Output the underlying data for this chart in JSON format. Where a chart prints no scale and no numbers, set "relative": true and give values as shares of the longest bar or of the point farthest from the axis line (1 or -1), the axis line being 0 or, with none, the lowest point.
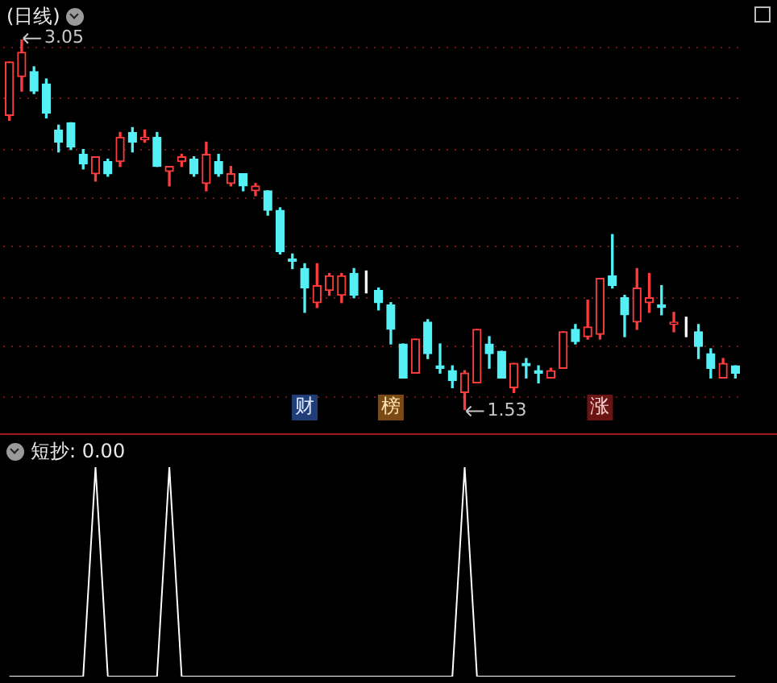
{
  "chart_data": [
    {
      "type": "candlestick",
      "title": "(日线)",
      "categories": [
        null,
        null,
        null,
        null,
        null,
        null,
        null,
        null,
        null,
        null,
        null,
        null,
        null,
        null,
        null,
        null,
        null,
        null,
        null,
        null,
        null,
        null,
        null,
        null,
        null,
        null,
        null,
        null,
        null,
        null,
        null,
        null,
        null,
        null,
        null,
        null,
        null,
        null,
        null,
        null,
        null,
        null,
        null,
        null,
        null,
        null,
        null,
        null,
        null,
        null,
        null,
        null,
        null,
        null,
        null,
        null,
        null,
        null,
        null,
        null
      ],
      "ohlc": [
        [
          2.74,
          2.96,
          2.72,
          2.96
        ],
        [
          2.9,
          3.05,
          2.84,
          3.0
        ],
        [
          2.92,
          2.94,
          2.83,
          2.84
        ],
        [
          2.87,
          2.89,
          2.73,
          2.75
        ],
        [
          2.68,
          2.7,
          2.59,
          2.63
        ],
        [
          2.71,
          2.71,
          2.6,
          2.61
        ],
        [
          2.58,
          2.6,
          2.52,
          2.54
        ],
        [
          2.5,
          2.57,
          2.47,
          2.57
        ],
        [
          2.55,
          2.56,
          2.49,
          2.5
        ],
        [
          2.55,
          2.67,
          2.53,
          2.65
        ],
        [
          2.67,
          2.69,
          2.59,
          2.63
        ],
        [
          2.64,
          2.68,
          2.63,
          2.65
        ],
        [
          2.65,
          2.67,
          2.53,
          2.53
        ],
        [
          2.51,
          2.53,
          2.45,
          2.53
        ],
        [
          2.55,
          2.58,
          2.53,
          2.57
        ],
        [
          2.56,
          2.57,
          2.49,
          2.5
        ],
        [
          2.46,
          2.63,
          2.43,
          2.58
        ],
        [
          2.55,
          2.58,
          2.49,
          2.5
        ],
        [
          2.46,
          2.53,
          2.45,
          2.5
        ],
        [
          2.5,
          2.5,
          2.43,
          2.45
        ],
        [
          2.43,
          2.46,
          2.41,
          2.45
        ],
        [
          2.43,
          2.43,
          2.33,
          2.35
        ],
        [
          2.35,
          2.36,
          2.17,
          2.18
        ],
        [
          2.15,
          2.17,
          2.11,
          2.14
        ],
        [
          2.11,
          2.13,
          1.93,
          2.03
        ],
        [
          1.97,
          2.13,
          1.95,
          2.04
        ],
        [
          2.02,
          2.09,
          2.0,
          2.08
        ],
        [
          2.0,
          2.09,
          1.97,
          2.08
        ],
        [
          2.09,
          2.11,
          1.99,
          2.0
        ],
        [
          2.03,
          2.1,
          2.01,
          2.03
        ],
        [
          2.02,
          2.03,
          1.94,
          1.97
        ],
        [
          1.96,
          1.97,
          1.8,
          1.86
        ],
        [
          1.8,
          1.8,
          1.66,
          1.66
        ],
        [
          1.68,
          1.82,
          1.68,
          1.82
        ],
        [
          1.89,
          1.9,
          1.74,
          1.76
        ],
        [
          1.71,
          1.8,
          1.68,
          1.7
        ],
        [
          1.69,
          1.71,
          1.62,
          1.65
        ],
        [
          1.6,
          1.69,
          1.53,
          1.68
        ],
        [
          1.64,
          1.86,
          1.64,
          1.86
        ],
        [
          1.8,
          1.83,
          1.7,
          1.76
        ],
        [
          1.77,
          1.77,
          1.66,
          1.66
        ],
        [
          1.62,
          1.72,
          1.6,
          1.72
        ],
        [
          1.72,
          1.74,
          1.66,
          1.71
        ],
        [
          1.69,
          1.71,
          1.64,
          1.68
        ],
        [
          1.66,
          1.7,
          1.66,
          1.69
        ],
        [
          1.7,
          1.85,
          1.7,
          1.85
        ],
        [
          1.86,
          1.88,
          1.8,
          1.81
        ],
        [
          1.83,
          1.98,
          1.82,
          1.87
        ],
        [
          1.84,
          2.07,
          1.82,
          2.07
        ],
        [
          2.08,
          2.25,
          2.03,
          2.04
        ],
        [
          1.99,
          2.0,
          1.83,
          1.92
        ],
        [
          1.89,
          2.11,
          1.86,
          2.03
        ],
        [
          1.97,
          2.09,
          1.93,
          1.99
        ],
        [
          1.96,
          2.04,
          1.92,
          1.95
        ],
        [
          1.88,
          1.93,
          1.85,
          1.89
        ],
        [
          1.84,
          1.91,
          1.83,
          1.84
        ],
        [
          1.85,
          1.88,
          1.74,
          1.79
        ],
        [
          1.76,
          1.78,
          1.66,
          1.7
        ],
        [
          1.66,
          1.74,
          1.66,
          1.72
        ],
        [
          1.71,
          1.71,
          1.66,
          1.68
        ]
      ],
      "colors": [
        "#ff3c3c",
        "#ff3c3c",
        "#54f0f5",
        "#54f0f5",
        "#54f0f5",
        "#54f0f5",
        "#54f0f5",
        "#ff3c3c",
        "#54f0f5",
        "#ff3c3c",
        "#54f0f5",
        "#ff3c3c",
        "#54f0f5",
        "#ff3c3c",
        "#ff3c3c",
        "#54f0f5",
        "#ff3c3c",
        "#54f0f5",
        "#ff3c3c",
        "#54f0f5",
        "#ff3c3c",
        "#54f0f5",
        "#54f0f5",
        "#54f0f5",
        "#54f0f5",
        "#ff3c3c",
        "#ff3c3c",
        "#ff3c3c",
        "#54f0f5",
        "#ffffff",
        "#54f0f5",
        "#54f0f5",
        "#54f0f5",
        "#ff3c3c",
        "#54f0f5",
        "#54f0f5",
        "#54f0f5",
        "#ff3c3c",
        "#ff3c3c",
        "#54f0f5",
        "#54f0f5",
        "#ff3c3c",
        "#54f0f5",
        "#54f0f5",
        "#ff3c3c",
        "#ff3c3c",
        "#54f0f5",
        "#ff3c3c",
        "#ff3c3c",
        "#54f0f5",
        "#54f0f5",
        "#ff3c3c",
        "#ff3c3c",
        "#54f0f5",
        "#ff3c3c",
        "#ffffff",
        "#54f0f5",
        "#54f0f5",
        "#ff3c3c",
        "#54f0f5"
      ],
      "yticks": [
        {
          "value": 3.02,
          "label": null
        },
        {
          "value": 2.81,
          "label": null
        },
        {
          "value": 2.6,
          "label": null
        },
        {
          "value": 2.4,
          "label": null
        },
        {
          "value": 2.2,
          "label": null
        },
        {
          "value": 1.99,
          "label": null
        },
        {
          "value": 1.79,
          "label": null
        },
        {
          "value": 1.58,
          "label": null
        }
      ],
      "grid": "y",
      "tick_labels": false,
      "legend": false,
      "annotations": [
        "3.05",
        "1.53",
        "财",
        "榜",
        "涨"
      ]
    },
    {
      "type": "line",
      "title": "短抄: 0.00",
      "relative": true,
      "legend": false,
      "marker": "none",
      "categories": [
        null,
        null,
        null,
        null,
        null,
        null,
        null,
        null,
        null,
        null,
        null,
        null,
        null,
        null,
        null,
        null,
        null,
        null,
        null,
        null,
        null,
        null,
        null,
        null,
        null,
        null,
        null,
        null,
        null,
        null,
        null,
        null,
        null,
        null,
        null,
        null,
        null,
        null,
        null,
        null,
        null,
        null,
        null,
        null,
        null,
        null,
        null,
        null,
        null,
        null,
        null,
        null,
        null,
        null,
        null,
        null,
        null,
        null,
        null,
        null
      ],
      "series": [
        {
          "color": "#ffffff",
          "values": [
            0,
            0,
            0,
            0,
            0,
            0,
            0,
            1,
            0,
            0,
            0,
            0,
            0,
            1,
            0,
            0,
            0,
            0,
            0,
            0,
            0,
            0,
            0,
            0,
            0,
            0,
            0,
            0,
            0,
            0,
            0,
            0,
            0,
            0,
            0,
            0,
            0,
            1,
            0,
            0,
            0,
            0,
            0,
            0,
            0,
            0,
            0,
            0,
            0,
            0,
            0,
            0,
            0,
            0,
            0,
            0,
            0,
            0,
            0,
            0
          ]
        }
      ]
    }
  ]
}
